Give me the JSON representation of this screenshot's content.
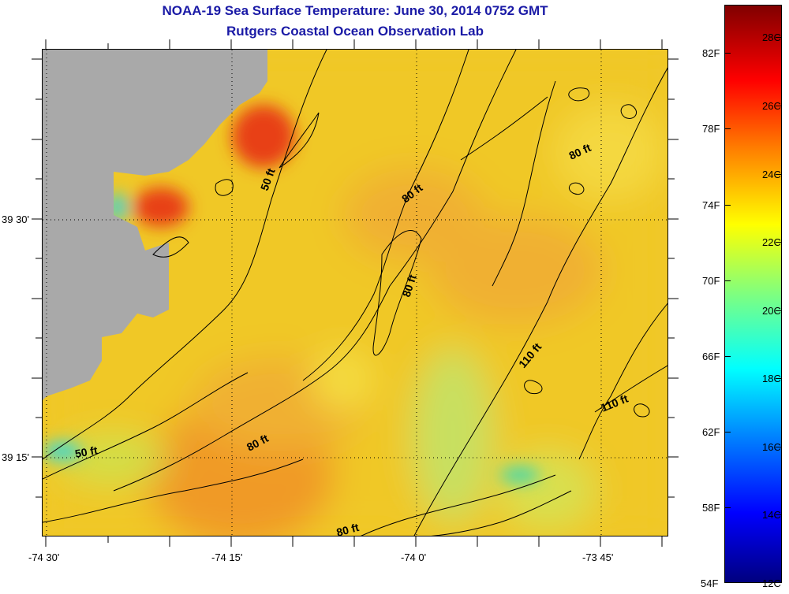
{
  "title": {
    "line1": "NOAA-19 Sea Surface Temperature:  June 30, 2014 0752 GMT",
    "line2": "Rutgers Coastal Ocean Observation Lab"
  },
  "axes": {
    "x_ticks": [
      "-74 30'",
      "-74 15'",
      "-74 0'",
      "-73 45'"
    ],
    "y_ticks": [
      "39 30'",
      "39 15'"
    ]
  },
  "contour_labels": [
    "50 ft",
    "80 ft",
    "80 ft",
    "80 ft",
    "110 ft",
    "110 ft",
    "50 ft",
    "80 ft",
    "80 ft"
  ],
  "colorbar": {
    "fahrenheit": [
      "82F",
      "78F",
      "74F",
      "70F",
      "66F",
      "62F",
      "58F",
      "54F"
    ],
    "celsius": [
      "28C",
      "26C",
      "24C",
      "22C",
      "20C",
      "18C",
      "16C",
      "14C",
      "12C"
    ]
  },
  "colors": {
    "land": "#a9a9a9",
    "ocean_base": "#f0c828",
    "title": "#1a1aa6"
  }
}
